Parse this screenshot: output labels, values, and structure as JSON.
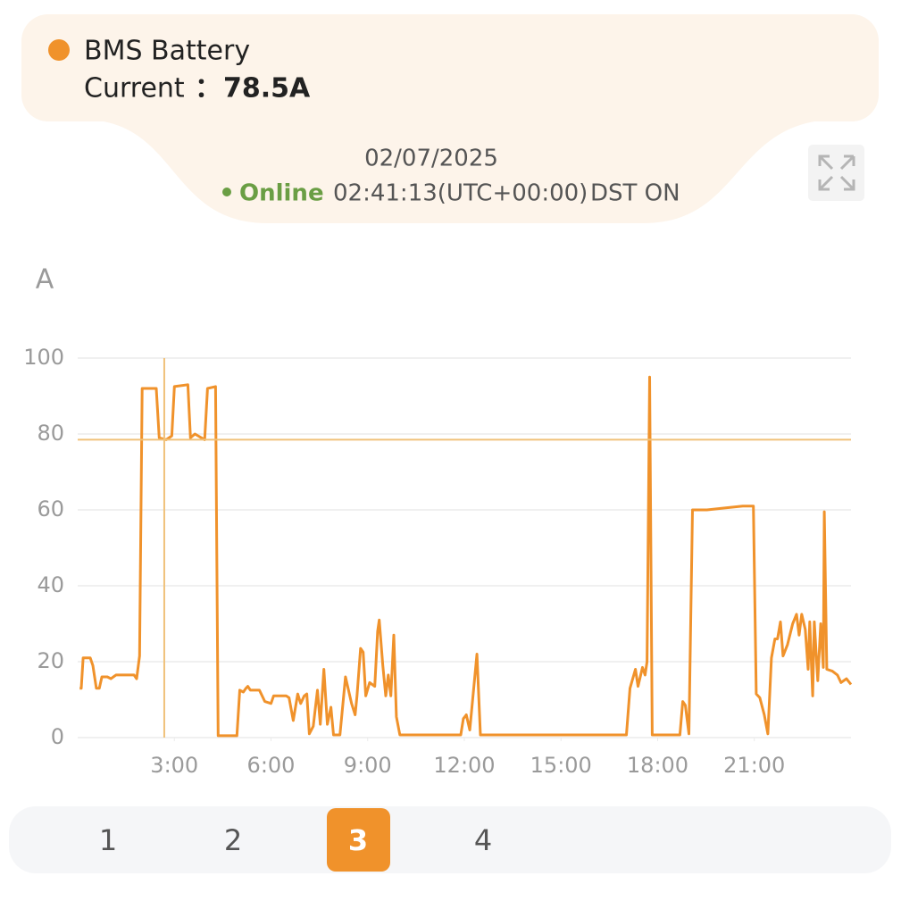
{
  "header": {
    "date": "02/07/2025",
    "status": "Online",
    "time": "02:41:13(UTC+00:00)",
    "dst": "DST ON"
  },
  "chart_data": {
    "type": "line",
    "y_label": "A",
    "xlim": [
      0,
      24
    ],
    "xticks": [
      {
        "value": 3,
        "label": "3:00"
      },
      {
        "value": 6,
        "label": "6:00"
      },
      {
        "value": 9,
        "label": "9:00"
      },
      {
        "value": 12,
        "label": "12:00"
      },
      {
        "value": 15,
        "label": "15:00"
      },
      {
        "value": 18,
        "label": "18:00"
      },
      {
        "value": 21,
        "label": "21:00"
      }
    ],
    "ylim": [
      0,
      100
    ],
    "yticks": [
      0,
      20,
      40,
      60,
      80,
      100
    ],
    "grid": true,
    "tooltip": {
      "series_name": "BMS Battery",
      "label": "Current",
      "separator": "：",
      "value": 78.5,
      "value_label": "78.5A"
    },
    "series": [
      {
        "name": "BMS Battery",
        "color": "#f0922b",
        "x": [
          0.06,
          0.11,
          0.17,
          0.39,
          0.47,
          0.58,
          0.67,
          0.75,
          0.92,
          1.03,
          1.19,
          1.47,
          1.75,
          1.83,
          1.92,
          2.0,
          2.44,
          2.53,
          2.75,
          2.92,
          3.0,
          3.42,
          3.5,
          3.64,
          3.94,
          4.03,
          4.28,
          4.36,
          4.94,
          5.03,
          5.14,
          5.22,
          5.28,
          5.36,
          5.64,
          5.81,
          6.0,
          6.08,
          6.47,
          6.56,
          6.69,
          6.83,
          6.92,
          7.03,
          7.11,
          7.19,
          7.31,
          7.44,
          7.53,
          7.64,
          7.75,
          7.86,
          7.94,
          8.14,
          8.31,
          8.5,
          8.61,
          8.67,
          8.78,
          8.86,
          8.94,
          9.06,
          9.22,
          9.31,
          9.36,
          9.47,
          9.56,
          9.64,
          9.72,
          9.81,
          9.89,
          10.0,
          11.89,
          11.97,
          12.06,
          12.17,
          12.39,
          12.5,
          17.03,
          17.14,
          17.31,
          17.39,
          17.53,
          17.61,
          17.67,
          17.75,
          17.83,
          18.69,
          18.78,
          18.86,
          18.97,
          19.08,
          19.53,
          20.08,
          20.64,
          20.97,
          21.06,
          21.17,
          21.31,
          21.42,
          21.53,
          21.64,
          21.72,
          21.81,
          21.89,
          22.03,
          22.19,
          22.31,
          22.39,
          22.47,
          22.58,
          22.67,
          22.72,
          22.81,
          22.86,
          22.97,
          23.06,
          23.14,
          23.17,
          23.25,
          23.42,
          23.58,
          23.69,
          23.86,
          24.0
        ],
        "values": [
          13,
          13,
          21,
          21,
          19,
          13,
          13,
          16,
          16,
          15.5,
          16.5,
          16.5,
          16.5,
          15.5,
          21.5,
          92,
          92,
          79,
          78.5,
          79.5,
          92.5,
          93,
          79,
          80,
          78.5,
          92,
          92.5,
          0.5,
          0.5,
          12.5,
          12,
          13,
          13.5,
          12.5,
          12.5,
          9.5,
          9,
          11,
          11,
          10.5,
          4.5,
          11.5,
          9,
          11,
          11.5,
          1,
          3,
          12.5,
          3.5,
          18,
          3.5,
          8,
          0.7,
          0.7,
          16,
          9,
          6,
          11,
          23.5,
          22.5,
          11,
          14.5,
          13.5,
          28,
          31,
          19,
          11,
          16.5,
          11,
          27,
          5.5,
          0.7,
          0.7,
          5,
          6,
          2,
          22,
          0.7,
          0.7,
          13,
          18,
          13.5,
          18.5,
          16.5,
          20,
          95,
          0.7,
          0.7,
          9.5,
          8.5,
          1,
          60,
          60,
          60.5,
          61,
          61,
          11.5,
          10.5,
          6,
          1,
          21,
          26,
          26,
          30.5,
          21.5,
          24.5,
          30,
          32.5,
          27,
          32.5,
          28.5,
          18,
          30.5,
          11,
          30.5,
          15,
          30,
          18.5,
          59.5,
          18,
          17.5,
          16.5,
          14.5,
          15.5,
          14
        ]
      }
    ]
  },
  "pagination": {
    "pages": [
      "1",
      "2",
      "3",
      "4"
    ],
    "active": 2
  }
}
